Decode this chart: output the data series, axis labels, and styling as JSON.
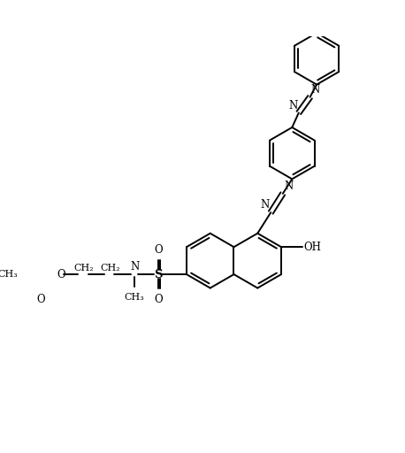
{
  "background": "#ffffff",
  "line_color": "#000000",
  "line_width": 1.4,
  "fig_width": 4.58,
  "fig_height": 5.12,
  "dpi": 100,
  "xlim": [
    0,
    9
  ],
  "ylim": [
    0,
    10
  ]
}
